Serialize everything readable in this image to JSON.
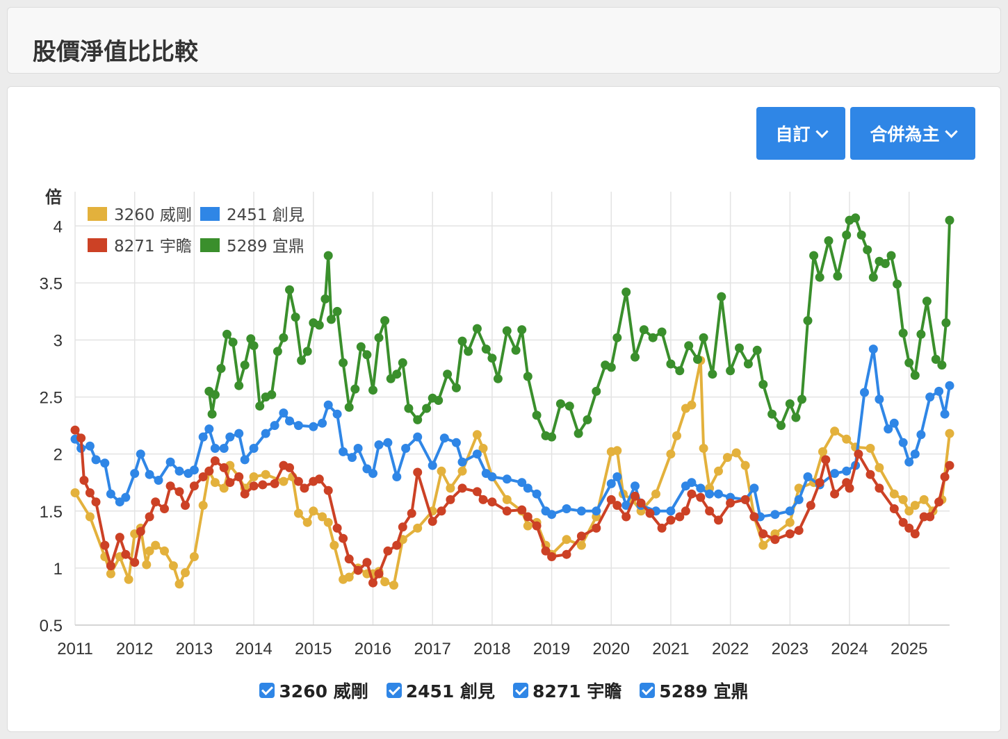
{
  "header": {
    "title": "股價淨值比比較"
  },
  "controls": {
    "custom_label": "自訂",
    "basis_label": "合併為主"
  },
  "chart_data": {
    "type": "line",
    "title": "",
    "ylabel": "倍",
    "xlabel": "",
    "ylim": [
      0.5,
      4.3
    ],
    "yticks": [
      "0.5",
      "1",
      "1.5",
      "2",
      "2.5",
      "3",
      "3.5",
      "4"
    ],
    "xticks": [
      "2011",
      "2012",
      "2013",
      "2014",
      "2015",
      "2016",
      "2017",
      "2018",
      "2019",
      "2020",
      "2021",
      "2022",
      "2023",
      "2024",
      "2025"
    ],
    "xrange": [
      2011,
      2025.68
    ],
    "legend_position": "top-left",
    "grid": true,
    "series": [
      {
        "name": "3260 威剛",
        "color": "#e3b13c",
        "x": [
          2011.0,
          2011.25,
          2011.5,
          2011.6,
          2011.75,
          2011.9,
          2012.0,
          2012.1,
          2012.2,
          2012.25,
          2012.35,
          2012.5,
          2012.65,
          2012.75,
          2012.85,
          2013.0,
          2013.15,
          2013.25,
          2013.35,
          2013.5,
          2013.6,
          2013.75,
          2013.85,
          2014.0,
          2014.2,
          2014.5,
          2014.65,
          2014.75,
          2014.9,
          2015.0,
          2015.15,
          2015.25,
          2015.35,
          2015.5,
          2015.6,
          2015.75,
          2015.9,
          2016.0,
          2016.1,
          2016.2,
          2016.35,
          2016.5,
          2016.75,
          2017.0,
          2017.15,
          2017.3,
          2017.5,
          2017.75,
          2017.85,
          2018.0,
          2018.25,
          2018.5,
          2018.6,
          2018.75,
          2018.9,
          2019.0,
          2019.25,
          2019.5,
          2019.75,
          2020.0,
          2020.1,
          2020.2,
          2020.35,
          2020.5,
          2020.75,
          2021.0,
          2021.1,
          2021.25,
          2021.35,
          2021.5,
          2021.55,
          2021.65,
          2021.8,
          2021.95,
          2022.1,
          2022.25,
          2022.4,
          2022.55,
          2022.75,
          2023.0,
          2023.15,
          2023.4,
          2023.55,
          2023.75,
          2023.95,
          2024.1,
          2024.35,
          2024.5,
          2024.75,
          2024.9,
          2025.0,
          2025.1,
          2025.25,
          2025.4,
          2025.55,
          2025.68
        ],
        "y": [
          1.66,
          1.45,
          1.1,
          0.95,
          1.1,
          0.9,
          1.3,
          1.35,
          1.03,
          1.15,
          1.2,
          1.15,
          1.02,
          0.86,
          0.96,
          1.1,
          1.55,
          1.85,
          1.75,
          1.7,
          1.9,
          1.8,
          1.7,
          1.8,
          1.82,
          1.76,
          1.8,
          1.48,
          1.4,
          1.5,
          1.45,
          1.4,
          1.2,
          0.9,
          0.92,
          1.0,
          0.95,
          0.95,
          0.97,
          0.88,
          0.85,
          1.25,
          1.35,
          1.5,
          1.85,
          1.7,
          1.85,
          2.17,
          2.05,
          1.8,
          1.6,
          1.5,
          1.37,
          1.4,
          1.2,
          1.12,
          1.25,
          1.2,
          1.45,
          2.02,
          2.03,
          1.65,
          1.6,
          1.5,
          1.65,
          2.0,
          2.16,
          2.4,
          2.43,
          2.82,
          2.05,
          1.7,
          1.85,
          1.97,
          2.01,
          1.9,
          1.45,
          1.2,
          1.3,
          1.4,
          1.7,
          1.75,
          2.02,
          2.2,
          2.13,
          2.06,
          2.05,
          1.88,
          1.65,
          1.6,
          1.5,
          1.55,
          1.6,
          1.5,
          1.6,
          2.18
        ]
      },
      {
        "name": "2451 創見",
        "color": "#2f86e6",
        "x": [
          2011.0,
          2011.1,
          2011.25,
          2011.35,
          2011.5,
          2011.6,
          2011.75,
          2011.85,
          2012.0,
          2012.1,
          2012.25,
          2012.4,
          2012.6,
          2012.75,
          2012.9,
          2013.0,
          2013.15,
          2013.25,
          2013.35,
          2013.5,
          2013.6,
          2013.75,
          2013.85,
          2014.0,
          2014.2,
          2014.35,
          2014.5,
          2014.6,
          2014.75,
          2015.0,
          2015.15,
          2015.25,
          2015.4,
          2015.5,
          2015.65,
          2015.75,
          2015.9,
          2016.0,
          2016.1,
          2016.25,
          2016.4,
          2016.55,
          2016.75,
          2017.0,
          2017.2,
          2017.4,
          2017.5,
          2017.75,
          2017.9,
          2018.0,
          2018.25,
          2018.5,
          2018.6,
          2018.75,
          2018.9,
          2019.0,
          2019.25,
          2019.5,
          2019.75,
          2020.0,
          2020.1,
          2020.25,
          2020.4,
          2020.5,
          2020.75,
          2021.0,
          2021.25,
          2021.35,
          2021.5,
          2021.65,
          2021.8,
          2022.0,
          2022.25,
          2022.4,
          2022.5,
          2022.75,
          2023.0,
          2023.15,
          2023.3,
          2023.5,
          2023.75,
          2023.95,
          2024.1,
          2024.25,
          2024.4,
          2024.5,
          2024.65,
          2024.75,
          2024.9,
          2025.0,
          2025.1,
          2025.2,
          2025.35,
          2025.5,
          2025.6,
          2025.68
        ],
        "y": [
          2.13,
          2.05,
          2.07,
          1.95,
          1.92,
          1.65,
          1.58,
          1.62,
          1.83,
          2.0,
          1.82,
          1.77,
          1.93,
          1.85,
          1.83,
          1.86,
          2.15,
          2.22,
          2.05,
          2.05,
          2.15,
          2.18,
          1.95,
          2.05,
          2.18,
          2.25,
          2.36,
          2.29,
          2.25,
          2.24,
          2.27,
          2.43,
          2.35,
          2.02,
          1.97,
          2.05,
          1.87,
          1.83,
          2.08,
          2.1,
          1.8,
          2.05,
          2.15,
          1.9,
          2.14,
          2.1,
          1.93,
          2.0,
          1.83,
          1.8,
          1.78,
          1.75,
          1.7,
          1.65,
          1.5,
          1.47,
          1.52,
          1.5,
          1.5,
          1.74,
          1.8,
          1.55,
          1.72,
          1.55,
          1.5,
          1.5,
          1.72,
          1.75,
          1.7,
          1.65,
          1.65,
          1.62,
          1.6,
          1.7,
          1.45,
          1.47,
          1.5,
          1.6,
          1.8,
          1.73,
          1.83,
          1.85,
          1.9,
          2.54,
          2.92,
          2.48,
          2.22,
          2.27,
          2.1,
          1.93,
          2.0,
          2.17,
          2.5,
          2.55,
          2.35,
          2.6
        ]
      },
      {
        "name": "8271 宇瞻",
        "color": "#cc4125",
        "x": [
          2011.0,
          2011.1,
          2011.15,
          2011.25,
          2011.35,
          2011.5,
          2011.6,
          2011.75,
          2011.85,
          2012.0,
          2012.1,
          2012.25,
          2012.35,
          2012.5,
          2012.6,
          2012.75,
          2012.85,
          2013.0,
          2013.15,
          2013.25,
          2013.35,
          2013.5,
          2013.6,
          2013.75,
          2013.85,
          2014.0,
          2014.15,
          2014.35,
          2014.5,
          2014.6,
          2014.75,
          2014.85,
          2015.0,
          2015.1,
          2015.25,
          2015.4,
          2015.5,
          2015.6,
          2015.75,
          2015.9,
          2016.0,
          2016.1,
          2016.25,
          2016.4,
          2016.5,
          2016.65,
          2016.75,
          2017.0,
          2017.15,
          2017.3,
          2017.5,
          2017.75,
          2017.85,
          2018.0,
          2018.25,
          2018.5,
          2018.6,
          2018.75,
          2018.9,
          2019.0,
          2019.25,
          2019.5,
          2019.75,
          2020.0,
          2020.1,
          2020.25,
          2020.4,
          2020.5,
          2020.65,
          2020.85,
          2021.0,
          2021.15,
          2021.25,
          2021.35,
          2021.5,
          2021.65,
          2021.8,
          2022.0,
          2022.25,
          2022.4,
          2022.55,
          2022.75,
          2023.0,
          2023.15,
          2023.35,
          2023.5,
          2023.6,
          2023.75,
          2023.95,
          2024.0,
          2024.15,
          2024.35,
          2024.5,
          2024.75,
          2024.9,
          2025.0,
          2025.1,
          2025.25,
          2025.35,
          2025.5,
          2025.6,
          2025.68
        ],
        "y": [
          2.21,
          2.14,
          1.77,
          1.66,
          1.58,
          1.2,
          1.02,
          1.27,
          1.12,
          1.05,
          1.32,
          1.45,
          1.58,
          1.52,
          1.72,
          1.67,
          1.55,
          1.72,
          1.8,
          1.85,
          1.94,
          1.88,
          1.75,
          1.8,
          1.65,
          1.72,
          1.73,
          1.74,
          1.9,
          1.88,
          1.76,
          1.7,
          1.76,
          1.78,
          1.68,
          1.35,
          1.26,
          1.08,
          0.98,
          1.05,
          0.87,
          0.95,
          1.15,
          1.2,
          1.36,
          1.48,
          1.84,
          1.41,
          1.5,
          1.6,
          1.7,
          1.67,
          1.6,
          1.58,
          1.5,
          1.51,
          1.45,
          1.37,
          1.15,
          1.1,
          1.12,
          1.28,
          1.35,
          1.6,
          1.55,
          1.45,
          1.63,
          1.57,
          1.48,
          1.35,
          1.42,
          1.45,
          1.5,
          1.65,
          1.62,
          1.5,
          1.42,
          1.57,
          1.6,
          1.45,
          1.3,
          1.25,
          1.3,
          1.33,
          1.55,
          1.75,
          1.95,
          1.65,
          1.75,
          1.7,
          2.0,
          1.82,
          1.7,
          1.52,
          1.4,
          1.35,
          1.3,
          1.45,
          1.45,
          1.58,
          1.8,
          1.9
        ]
      },
      {
        "name": "5289 宜鼎",
        "color": "#3a8f2c",
        "x": [
          2013.25,
          2013.3,
          2013.35,
          2013.45,
          2013.55,
          2013.65,
          2013.75,
          2013.85,
          2013.95,
          2014.0,
          2014.1,
          2014.2,
          2014.3,
          2014.4,
          2014.5,
          2014.6,
          2014.7,
          2014.8,
          2014.9,
          2015.0,
          2015.1,
          2015.2,
          2015.25,
          2015.3,
          2015.4,
          2015.5,
          2015.6,
          2015.7,
          2015.8,
          2015.9,
          2016.0,
          2016.1,
          2016.2,
          2016.3,
          2016.4,
          2016.5,
          2016.6,
          2016.75,
          2016.9,
          2017.0,
          2017.1,
          2017.25,
          2017.4,
          2017.5,
          2017.6,
          2017.75,
          2017.9,
          2018.0,
          2018.1,
          2018.25,
          2018.4,
          2018.5,
          2018.6,
          2018.75,
          2018.9,
          2019.0,
          2019.15,
          2019.3,
          2019.45,
          2019.6,
          2019.75,
          2019.9,
          2020.0,
          2020.1,
          2020.25,
          2020.4,
          2020.55,
          2020.7,
          2020.85,
          2021.0,
          2021.15,
          2021.3,
          2021.45,
          2021.55,
          2021.7,
          2021.85,
          2022.0,
          2022.15,
          2022.3,
          2022.45,
          2022.55,
          2022.7,
          2022.85,
          2023.0,
          2023.1,
          2023.2,
          2023.3,
          2023.4,
          2023.5,
          2023.65,
          2023.8,
          2023.95,
          2024.0,
          2024.1,
          2024.2,
          2024.3,
          2024.4,
          2024.5,
          2024.6,
          2024.7,
          2024.8,
          2024.9,
          2025.0,
          2025.1,
          2025.2,
          2025.3,
          2025.45,
          2025.55,
          2025.62,
          2025.68
        ],
        "y": [
          2.55,
          2.35,
          2.52,
          2.75,
          3.05,
          2.98,
          2.6,
          2.78,
          3.01,
          2.95,
          2.42,
          2.5,
          2.52,
          2.9,
          3.02,
          3.44,
          3.2,
          2.82,
          2.9,
          3.15,
          3.13,
          3.36,
          3.74,
          3.18,
          3.25,
          2.8,
          2.41,
          2.57,
          2.94,
          2.87,
          2.56,
          3.02,
          3.17,
          2.66,
          2.7,
          2.8,
          2.4,
          2.3,
          2.4,
          2.49,
          2.47,
          2.7,
          2.58,
          2.99,
          2.9,
          3.1,
          2.92,
          2.84,
          2.66,
          3.08,
          2.91,
          3.09,
          2.68,
          2.34,
          2.16,
          2.15,
          2.44,
          2.42,
          2.18,
          2.3,
          2.55,
          2.78,
          2.76,
          3.02,
          3.42,
          2.85,
          3.09,
          3.02,
          3.07,
          2.79,
          2.73,
          2.95,
          2.83,
          3.02,
          2.7,
          3.38,
          2.73,
          2.93,
          2.79,
          2.91,
          2.61,
          2.35,
          2.25,
          2.44,
          2.32,
          2.48,
          3.17,
          3.74,
          3.55,
          3.87,
          3.56,
          3.92,
          4.05,
          4.07,
          3.92,
          3.79,
          3.55,
          3.69,
          3.67,
          3.74,
          3.49,
          3.06,
          2.8,
          2.69,
          3.05,
          3.34,
          2.83,
          2.78,
          3.15,
          4.05
        ]
      }
    ]
  }
}
